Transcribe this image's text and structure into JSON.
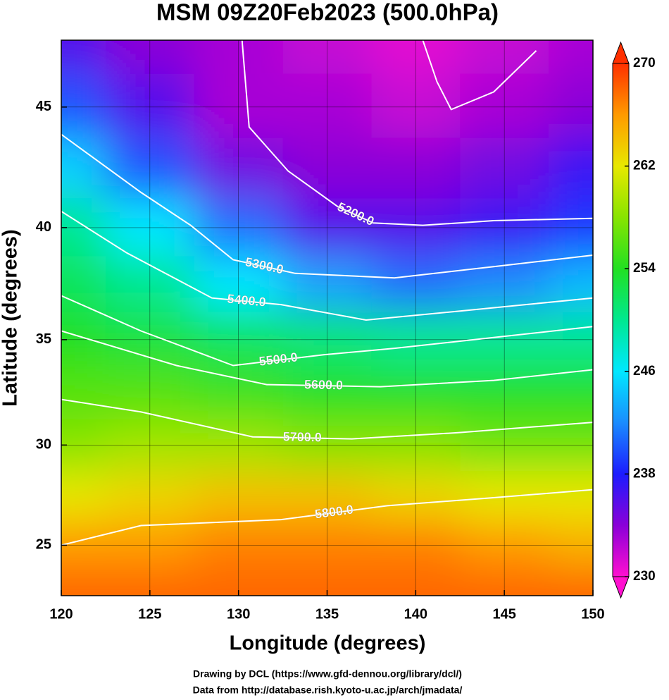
{
  "chart_data": {
    "type": "contour-map",
    "title": "MSM 09Z20Feb2023 (500.0hPa)",
    "x_label": "Longitude (degrees)",
    "y_label": "Latitude  (degrees)",
    "xlim": [
      120,
      150
    ],
    "ylim": [
      22.4,
      47.6
    ],
    "xticks": [
      120,
      125,
      130,
      135,
      140,
      145,
      150
    ],
    "yticks": [
      25,
      30,
      35,
      40,
      45
    ],
    "projection": "mercator",
    "grid": true,
    "field": {
      "lons": [
        120,
        125,
        130,
        135,
        140,
        145,
        150
      ],
      "lats": [
        47.6,
        45,
        42.5,
        40,
        37.5,
        35,
        32.5,
        30,
        27.5,
        25,
        22.4
      ],
      "values": [
        [
          236,
          234,
          233,
          232,
          231,
          232,
          233
        ],
        [
          240,
          236,
          233,
          233,
          232,
          233,
          234
        ],
        [
          245,
          240,
          235,
          234,
          234,
          235,
          237
        ],
        [
          250,
          246,
          241,
          236,
          236,
          237,
          239
        ],
        [
          252,
          250,
          246,
          243,
          241,
          242,
          244
        ],
        [
          254,
          253,
          252,
          251,
          250,
          250,
          250
        ],
        [
          256,
          256,
          255,
          254,
          254,
          254,
          254
        ],
        [
          258,
          259,
          259,
          258,
          258,
          257,
          257
        ],
        [
          262,
          263,
          264,
          264,
          263,
          262,
          262
        ],
        [
          266,
          266,
          267,
          267,
          267,
          266,
          265
        ],
        [
          268,
          268,
          268,
          268,
          268,
          268,
          268
        ]
      ]
    },
    "colorbar": {
      "lim": [
        230,
        270
      ],
      "ticks": [
        230,
        238,
        246,
        254,
        262,
        270
      ],
      "stops": [
        {
          "value": 230,
          "color": "#ff10d0"
        },
        {
          "value": 234,
          "color": "#8a00d8"
        },
        {
          "value": 238,
          "color": "#1c1cff"
        },
        {
          "value": 242,
          "color": "#1a8cff"
        },
        {
          "value": 246,
          "color": "#00e8ff"
        },
        {
          "value": 250,
          "color": "#00e890"
        },
        {
          "value": 254,
          "color": "#22e022"
        },
        {
          "value": 258,
          "color": "#88e400"
        },
        {
          "value": 262,
          "color": "#e8e800"
        },
        {
          "value": 266,
          "color": "#ff9a00"
        },
        {
          "value": 270,
          "color": "#ff3000"
        }
      ]
    },
    "contours": [
      {
        "level": 5100,
        "lon": [
          140.4,
          141.2,
          142.0,
          144.4,
          146.8
        ],
        "lat": [
          47.6,
          46.0,
          44.9,
          45.6,
          47.2
        ]
      },
      {
        "level": 5200,
        "label": "5200.0",
        "lon": [
          130.2,
          130.6,
          132.8,
          135.6,
          137.6,
          140.4,
          144.4,
          150
        ],
        "lat": [
          47.6,
          44.2,
          42.4,
          40.9,
          40.2,
          40.1,
          40.3,
          40.4
        ]
      },
      {
        "level": 5300,
        "label": "5300.0",
        "lon": [
          120,
          124.5,
          127.3,
          129.7,
          133.2,
          138.8,
          144.4,
          150
        ],
        "lat": [
          43.9,
          41.5,
          40.1,
          38.6,
          38.0,
          37.8,
          38.3,
          38.8
        ]
      },
      {
        "level": 5400,
        "label": "5400.0",
        "lon": [
          120,
          123.7,
          128.5,
          132.4,
          137.2,
          142.4,
          150
        ],
        "lat": [
          40.7,
          38.9,
          36.9,
          36.6,
          35.9,
          36.3,
          36.9
        ]
      },
      {
        "level": 5500,
        "label": "5500.0",
        "lon": [
          120,
          124.5,
          129.7,
          134.8,
          138.8,
          144.4,
          150
        ],
        "lat": [
          37.0,
          35.4,
          33.8,
          34.3,
          34.6,
          35.1,
          35.6
        ]
      },
      {
        "level": 5600,
        "label": "5600.0",
        "lon": [
          120,
          126.5,
          131.6,
          138.0,
          144.4,
          150
        ],
        "lat": [
          35.4,
          33.8,
          32.9,
          32.8,
          33.1,
          33.6
        ]
      },
      {
        "level": 5700,
        "label": "5700.0",
        "lon": [
          120,
          124.5,
          130.8,
          136.4,
          142.4,
          150
        ],
        "lat": [
          32.2,
          31.6,
          30.4,
          30.3,
          30.6,
          31.1
        ]
      },
      {
        "level": 5800,
        "label": "5800.0",
        "lon": [
          120,
          124.5,
          132.4,
          138.4,
          144.4,
          150
        ],
        "lat": [
          25.0,
          26.0,
          26.3,
          27.0,
          27.4,
          27.8
        ]
      }
    ],
    "footer": [
      "Drawing by DCL (https://www.gfd-dennou.org/library/dcl/)",
      "Data from http://database.rish.kyoto-u.ac.jp/arch/jmadata/"
    ]
  }
}
